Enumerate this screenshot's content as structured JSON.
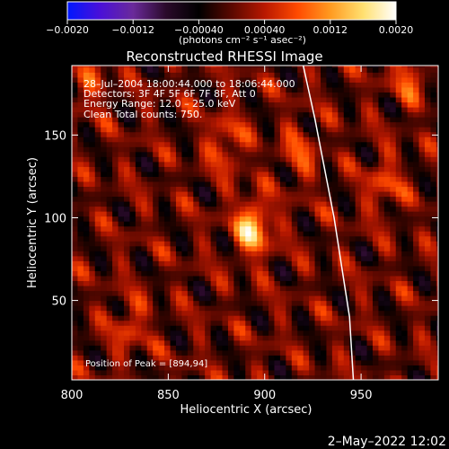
{
  "colorbar": {
    "tick_labels": [
      "−0.0020",
      "−0.0012",
      "−0.00040",
      "0.00040",
      "0.0012",
      "0.0020"
    ],
    "unit_label": "(photons cm⁻² s⁻¹ asec⁻²)"
  },
  "info_lines": [
    "28–Jul–2004 18:00:44.000 to 18:06:44.000",
    "Detectors: 3F 4F 5F 6F 7F 8F, Att 0",
    "Energy Range: 12.0 – 25.0 keV",
    "Clean    Total counts: 750."
  ],
  "peak_label": "Position of Peak = [894,94]",
  "footer_date": "2–May–2022 12:02",
  "colors": {
    "cmap": [
      "#0018ff",
      "#4a10d8",
      "#6a2a9a",
      "#2a0a2a",
      "#000000",
      "#5a0800",
      "#b81800",
      "#ff4a00",
      "#ff9a20",
      "#ffe070",
      "#ffffff"
    ]
  },
  "chart_data": {
    "type": "heatmap",
    "title": "Reconstructed RHESSI Image",
    "xlabel": "Heliocentric X (arcsec)",
    "ylabel": "Heliocentric Y (arcsec)",
    "xlim": [
      800,
      990
    ],
    "ylim": [
      2,
      192
    ],
    "x_ticks": [
      800,
      850,
      900,
      950
    ],
    "y_ticks": [
      50,
      100,
      150
    ],
    "color_range": [
      -0.002,
      0.002
    ],
    "peak": {
      "x": 894,
      "y": 94,
      "value": 0.002
    },
    "limb_curve": [
      [
        920,
        192
      ],
      [
        926,
        160
      ],
      [
        931,
        130
      ],
      [
        936,
        100
      ],
      [
        940,
        70
      ],
      [
        944,
        40
      ],
      [
        946,
        2
      ]
    ],
    "secondary_sources": [
      {
        "x": 880,
        "y": 145,
        "value": 0.001
      },
      {
        "x": 918,
        "y": 140,
        "value": 0.0008
      },
      {
        "x": 962,
        "y": 120,
        "value": 0.0009
      },
      {
        "x": 810,
        "y": 180,
        "value": 0.0007
      },
      {
        "x": 830,
        "y": 35,
        "value": 0.0008
      },
      {
        "x": 975,
        "y": 185,
        "value": 0.0009
      }
    ]
  }
}
